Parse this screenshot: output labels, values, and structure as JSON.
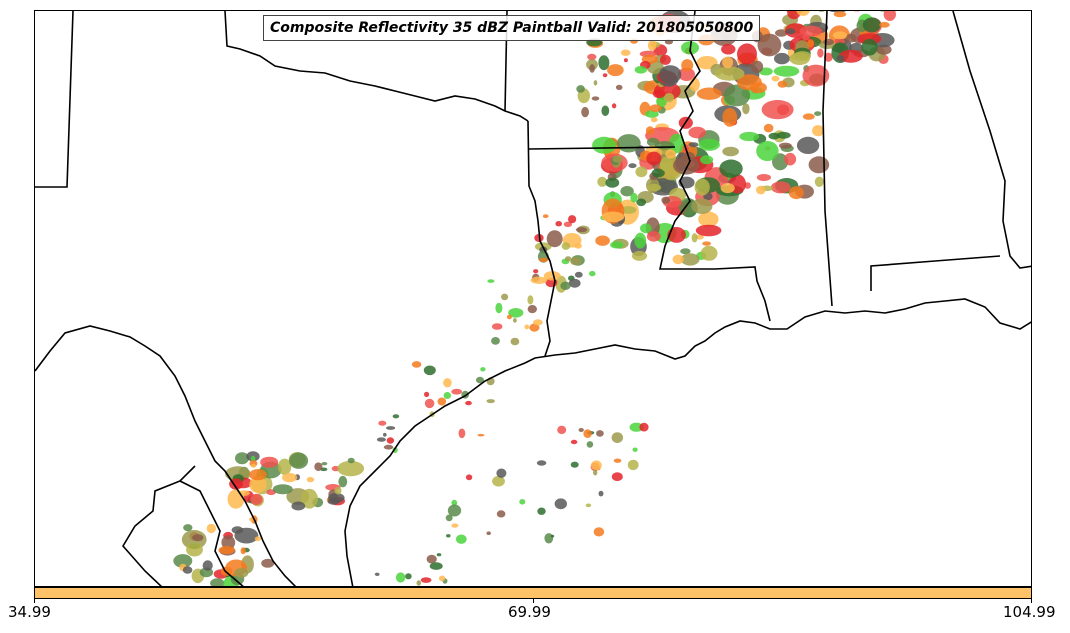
{
  "map": {
    "title": "Composite Reflectivity 35 dBZ Paintball Valid: 201805050800",
    "boundary_color": "#000000",
    "cell_colors": [
      "#f0524f",
      "#f57a1e",
      "#4bd43c",
      "#b5b44a",
      "#8a5c4a",
      "#e3252a",
      "#ffb850",
      "#5a8a4a",
      "#585858",
      "#2e6e2e",
      "#9c9a4c"
    ]
  },
  "colorbar": {
    "color": "#ffc266",
    "ticks": [
      "34.99",
      "69.99",
      "104.99"
    ]
  }
}
